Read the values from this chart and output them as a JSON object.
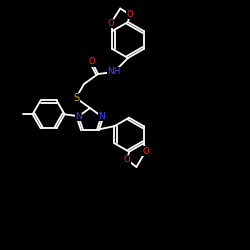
{
  "background_color": "#000000",
  "bond_color": "#ffffff",
  "atom_colors": {
    "N": "#4040ff",
    "O": "#ff2020",
    "S": "#ccaa00",
    "C": "#ffffff"
  },
  "figsize": [
    2.5,
    2.5
  ],
  "dpi": 100
}
